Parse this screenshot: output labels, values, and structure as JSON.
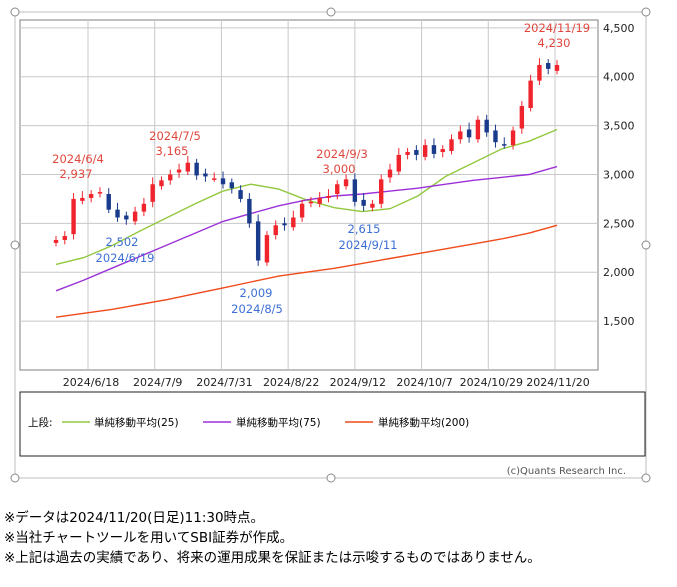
{
  "chart_data": {
    "type": "candlestick",
    "yticks": [
      1500,
      2000,
      2500,
      3000,
      3500,
      4000,
      4500
    ],
    "ytick_labels": [
      "1,500",
      "2,000",
      "2,500",
      "3,000",
      "3,500",
      "4,000",
      "4,500"
    ],
    "xtick_labels": [
      "2024/6/18",
      "2024/7/9",
      "2024/7/31",
      "2024/8/22",
      "2024/9/12",
      "2024/10/7",
      "2024/10/29",
      "2024/11/20"
    ],
    "ylim": [
      1000,
      4580
    ],
    "grid": true,
    "legend_placement": "bottom",
    "legend_prefix": "上段:",
    "series": [
      {
        "name": "単純移動平均(25)",
        "color": "#92c83e",
        "values": [
          2080,
          2150,
          2270,
          2420,
          2560,
          2700,
          2830,
          2900,
          2850,
          2740,
          2660,
          2620,
          2650,
          2780,
          2980,
          3120,
          3260,
          3340,
          3460
        ]
      },
      {
        "name": "単純移動平均(75)",
        "color": "#9b30d8",
        "values": [
          1810,
          1920,
          2040,
          2160,
          2280,
          2400,
          2520,
          2600,
          2680,
          2740,
          2780,
          2800,
          2830,
          2860,
          2900,
          2940,
          2970,
          3000,
          3080
        ]
      },
      {
        "name": "単純移動平均(200)",
        "color": "#f04a1a",
        "values": [
          1540,
          1580,
          1620,
          1670,
          1720,
          1780,
          1840,
          1900,
          1960,
          2000,
          2040,
          2090,
          2140,
          2190,
          2240,
          2290,
          2340,
          2400,
          2480
        ]
      }
    ],
    "candles_close": [
      2330,
      2370,
      2750,
      2760,
      2800,
      2820,
      2640,
      2560,
      2540,
      2620,
      2700,
      2900,
      2940,
      3000,
      3050,
      3120,
      2990,
      2980,
      2960,
      2900,
      2860,
      2750,
      2500,
      2120,
      2380,
      2480,
      2480,
      2560,
      2700,
      2720,
      2760,
      2780,
      2900,
      2950,
      2720,
      2680,
      2700,
      2950,
      3050,
      3200,
      3230,
      3200,
      3300,
      3210,
      3260,
      3360,
      3440,
      3380,
      3560,
      3430,
      3330,
      3300,
      3450,
      3700,
      3960,
      4120,
      4080,
      4120
    ],
    "annotations": {
      "high_jun": {
        "date": "2024/6/4",
        "value": "2,937",
        "color": "#e0463c"
      },
      "low_jun": {
        "date": "2024/6/19",
        "value": "2,502",
        "color": "#3b6fd6"
      },
      "high_jul": {
        "date": "2024/7/5",
        "value": "3,165",
        "color": "#e0463c"
      },
      "low_aug": {
        "date": "2024/8/5",
        "value": "2,009",
        "color": "#3b6fd6"
      },
      "high_sep": {
        "date": "2024/9/3",
        "value": "3,000",
        "color": "#e0463c"
      },
      "low_sep": {
        "date": "2024/9/11",
        "value": "2,615",
        "color": "#3b6fd6"
      },
      "high_nov": {
        "date": "2024/11/19",
        "value": "4,230",
        "color": "#e0463c"
      }
    }
  },
  "credit": "(c)Quants Research Inc.",
  "notes": [
    "※データは2024/11/20(日足)11:30時点。",
    "※当社チャートツールを用いてSBI証券が作成。",
    "※上記は過去の実績であり、将来の運用成果を保証または示唆するものではありません。"
  ],
  "colors": {
    "up": "#f0242c",
    "down": "#1a3a8c",
    "grid": "#c8c8c8"
  }
}
